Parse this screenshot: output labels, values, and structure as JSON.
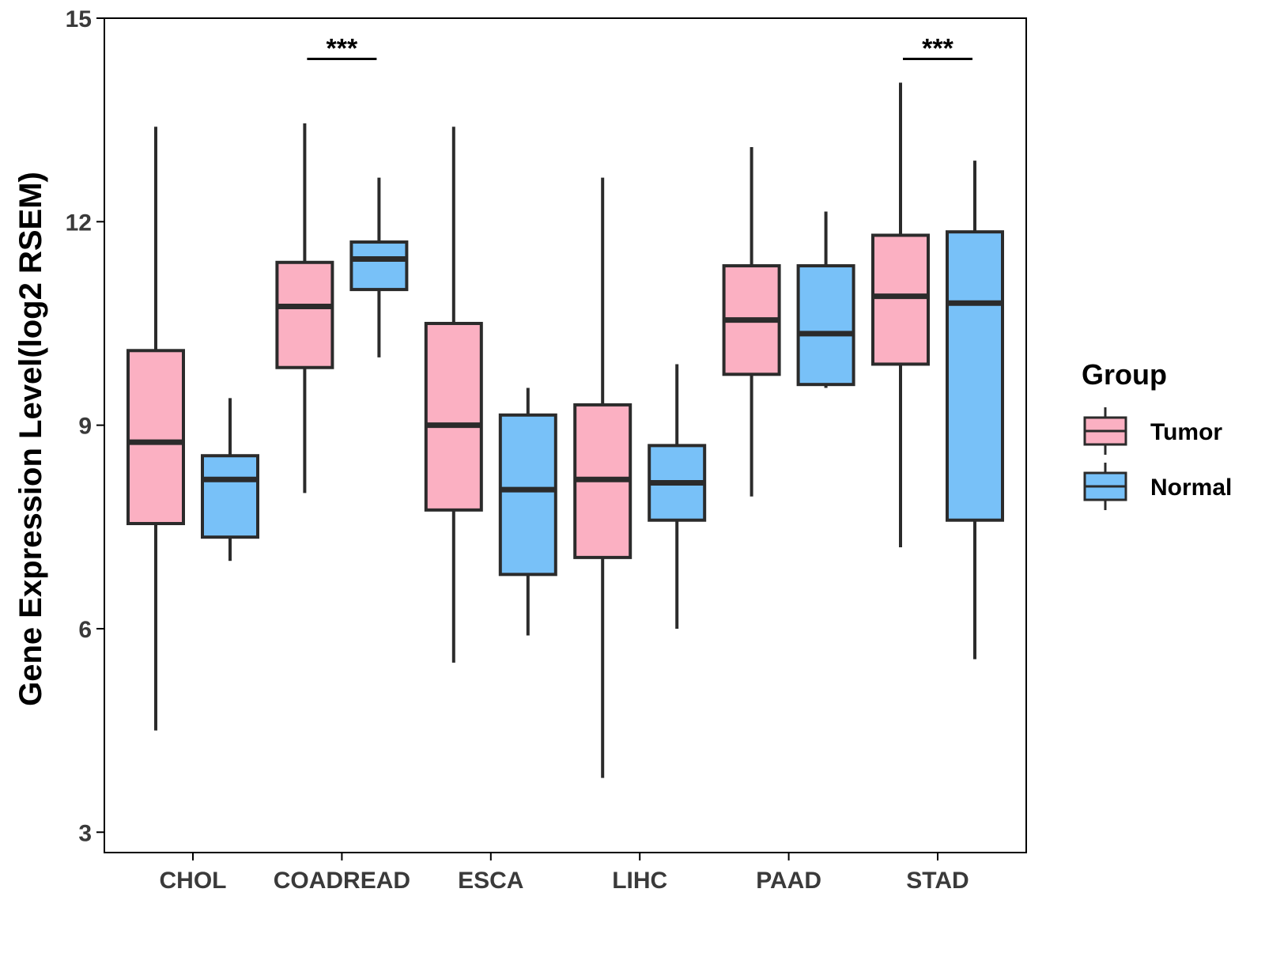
{
  "chart_data": {
    "type": "box",
    "title": "",
    "xlabel": "",
    "ylabel": "Gene Expression Level(log2 RSEM)",
    "ylim": [
      2.7,
      15
    ],
    "yticks": [
      3,
      6,
      9,
      12,
      15
    ],
    "categories": [
      "CHOL",
      "COADREAD",
      "ESCA",
      "LIHC",
      "PAAD",
      "STAD"
    ],
    "legend": {
      "title": "Group",
      "position": "right",
      "entries": [
        "Tumor",
        "Normal"
      ]
    },
    "colors": {
      "Tumor": "#FBB0C2",
      "Normal": "#78C1F8",
      "outline": "#2b2b2b"
    },
    "series": [
      {
        "name": "Tumor",
        "boxes": [
          {
            "min": 4.5,
            "q1": 7.55,
            "median": 8.75,
            "q3": 10.1,
            "max": 13.4
          },
          {
            "min": 8.0,
            "q1": 9.85,
            "median": 10.75,
            "q3": 11.4,
            "max": 13.45
          },
          {
            "min": 5.5,
            "q1": 7.75,
            "median": 9.0,
            "q3": 10.5,
            "max": 13.4
          },
          {
            "min": 3.8,
            "q1": 7.05,
            "median": 8.2,
            "q3": 9.3,
            "max": 12.65
          },
          {
            "min": 7.95,
            "q1": 9.75,
            "median": 10.55,
            "q3": 11.35,
            "max": 13.1
          },
          {
            "min": 7.2,
            "q1": 9.9,
            "median": 10.9,
            "q3": 11.8,
            "max": 14.05
          }
        ]
      },
      {
        "name": "Normal",
        "boxes": [
          {
            "min": 7.0,
            "q1": 7.35,
            "median": 8.2,
            "q3": 8.55,
            "max": 9.4
          },
          {
            "min": 10.0,
            "q1": 11.0,
            "median": 11.45,
            "q3": 11.7,
            "max": 12.65
          },
          {
            "min": 5.9,
            "q1": 6.8,
            "median": 8.05,
            "q3": 9.15,
            "max": 9.55
          },
          {
            "min": 6.0,
            "q1": 7.6,
            "median": 8.15,
            "q3": 8.7,
            "max": 9.9
          },
          {
            "min": 9.55,
            "q1": 9.6,
            "median": 10.35,
            "q3": 11.35,
            "max": 12.15
          },
          {
            "min": 5.55,
            "q1": 7.6,
            "median": 10.8,
            "q3": 11.85,
            "max": 12.9
          }
        ]
      }
    ],
    "annotations": [
      {
        "category": "COADREAD",
        "label": "***",
        "y": 14.4
      },
      {
        "category": "STAD",
        "label": "***",
        "y": 14.4
      }
    ]
  }
}
